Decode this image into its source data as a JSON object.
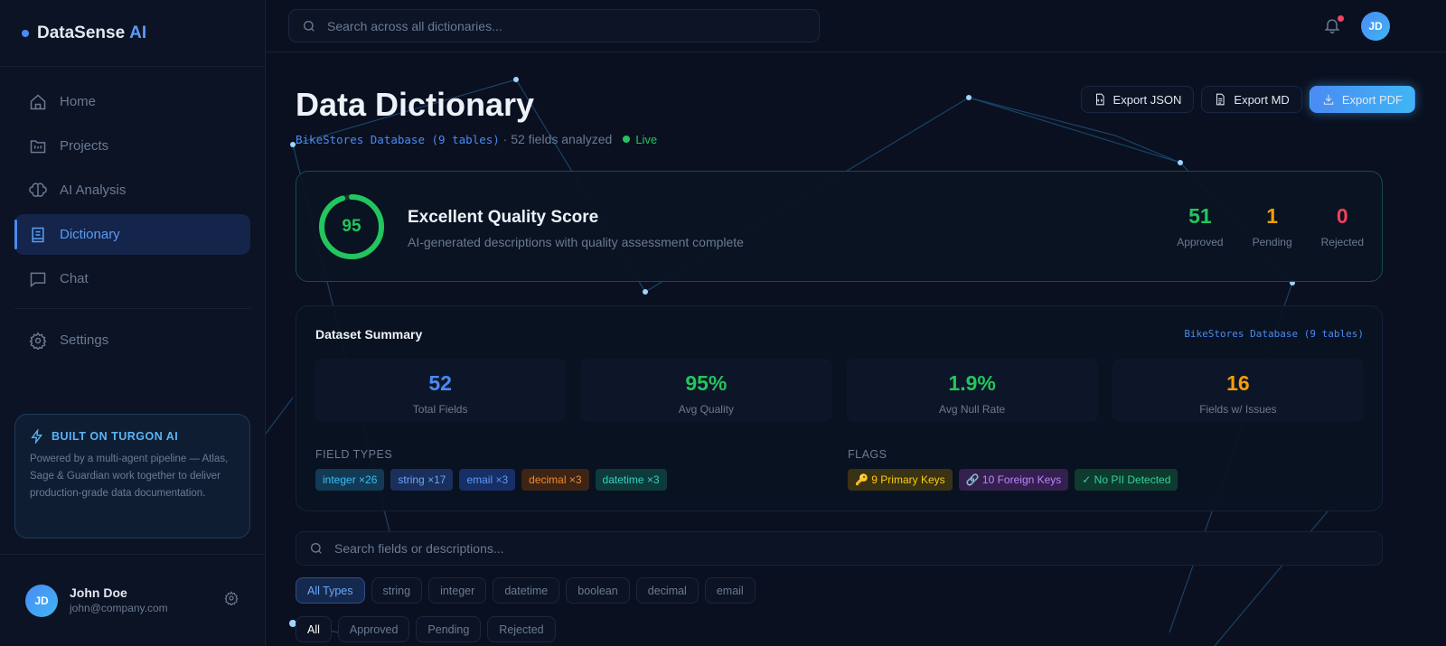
{
  "brand": {
    "name": "DataSense",
    "suffix": "AI"
  },
  "sidebar": {
    "items": [
      {
        "label": "Home",
        "icon": "home-icon"
      },
      {
        "label": "Projects",
        "icon": "folder-icon"
      },
      {
        "label": "AI Analysis",
        "icon": "brain-icon"
      },
      {
        "label": "Dictionary",
        "icon": "book-icon",
        "active": true
      },
      {
        "label": "Chat",
        "icon": "chat-icon"
      }
    ],
    "settings": "Settings"
  },
  "turgon": {
    "title": "BUILT ON TURGON AI",
    "text": "Powered by a multi-agent pipeline — Atlas, Sage & Guardian work together to deliver production-grade data documentation."
  },
  "user": {
    "initials": "JD",
    "name": "John Doe",
    "email": "john@company.com"
  },
  "topbar": {
    "search_placeholder": "Search across all dictionaries...",
    "notification_dot": "#ef4466"
  },
  "page": {
    "title": "Data Dictionary",
    "db": "BikeStores Database (9 tables)",
    "fields": "· 52 fields analyzed",
    "live": "Live"
  },
  "exports": {
    "json": "Export JSON",
    "md": "Export MD",
    "pdf": "Export PDF"
  },
  "quality": {
    "score": "95",
    "score_fraction": 0.95,
    "title": "Excellent Quality Score",
    "desc": "AI-generated descriptions with quality assessment complete",
    "approved": "51",
    "approved_label": "Approved",
    "pending": "1",
    "pending_label": "Pending",
    "rejected": "0",
    "rejected_label": "Rejected"
  },
  "summary": {
    "title": "Dataset Summary",
    "db": "BikeStores Database (9 tables)",
    "stats": [
      {
        "value": "52",
        "label": "Total Fields",
        "color": "#4a8af4"
      },
      {
        "value": "95%",
        "label": "Avg Quality",
        "color": "#22c55e"
      },
      {
        "value": "1.9%",
        "label": "Avg Null Rate",
        "color": "#22c55e"
      },
      {
        "value": "16",
        "label": "Fields w/ Issues",
        "color": "#f59e0b"
      }
    ],
    "field_types_label": "FIELD TYPES",
    "field_types": [
      "integer ×26",
      "string ×17",
      "email ×3",
      "decimal ×3",
      "datetime ×3"
    ],
    "flags_label": "FLAGS",
    "flags": [
      "🔑 9 Primary Keys",
      "🔗 10 Foreign Keys",
      "✓ No PII Detected"
    ]
  },
  "filters": {
    "search_placeholder": "Search fields or descriptions...",
    "types": [
      "All Types",
      "string",
      "integer",
      "datetime",
      "boolean",
      "decimal",
      "email"
    ],
    "statuses": [
      "All",
      "Approved",
      "Pending",
      "Rejected"
    ]
  }
}
